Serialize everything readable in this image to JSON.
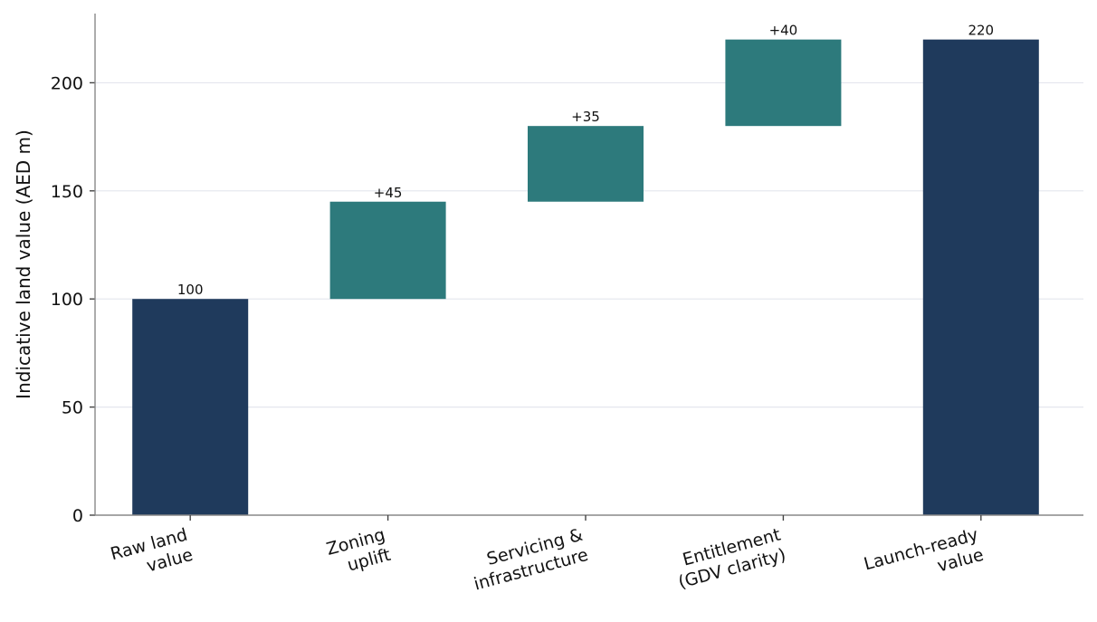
{
  "chart_data": {
    "type": "bar",
    "subtype": "waterfall",
    "title": "",
    "xlabel": "",
    "ylabel": "Indicative land value (AED m)",
    "ylim": [
      0,
      232
    ],
    "yticks": [
      0,
      50,
      100,
      150,
      200
    ],
    "grid": "horizontal",
    "categories": [
      [
        "Raw land",
        "value"
      ],
      [
        "Zoning",
        "uplift"
      ],
      [
        "Servicing &",
        "infrastructure"
      ],
      [
        "Entitlement",
        "(GDV clarity)"
      ],
      [
        "Launch-ready",
        "value"
      ]
    ],
    "bars": [
      {
        "kind": "total",
        "start": 0,
        "end": 100,
        "label": "100"
      },
      {
        "kind": "delta",
        "start": 100,
        "end": 145,
        "label": "+45"
      },
      {
        "kind": "delta",
        "start": 145,
        "end": 180,
        "label": "+35"
      },
      {
        "kind": "delta",
        "start": 180,
        "end": 220,
        "label": "+40"
      },
      {
        "kind": "total",
        "start": 0,
        "end": 220,
        "label": "220"
      }
    ],
    "colors": {
      "total": "#1f3a5c",
      "delta": "#2d7a7c"
    }
  }
}
